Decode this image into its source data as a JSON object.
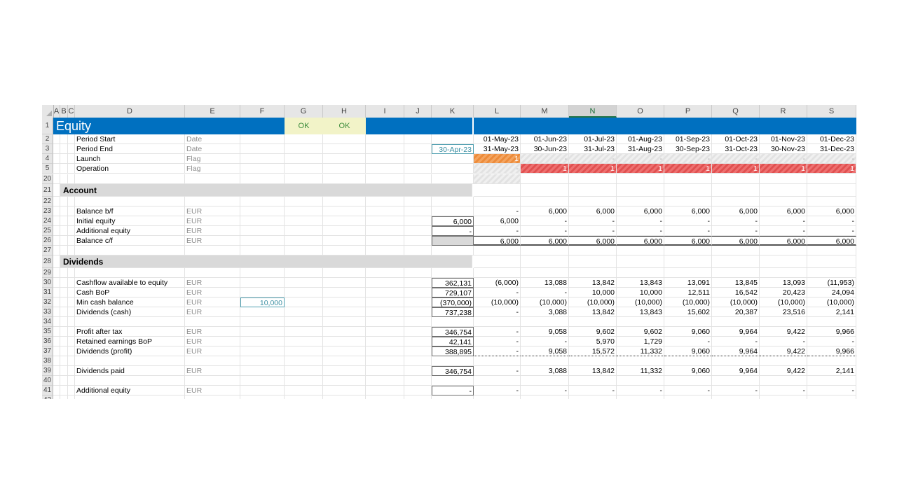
{
  "columns": [
    "A",
    "B",
    "C",
    "D",
    "E",
    "F",
    "G",
    "H",
    "I",
    "J",
    "K",
    "L",
    "M",
    "N",
    "O",
    "P",
    "Q",
    "R",
    "S"
  ],
  "selected_column": "N",
  "sheet_title": "Equity",
  "ok_flags": [
    "OK",
    "OK"
  ],
  "colors": {
    "title_bar": "#0070c0",
    "section": "#d9d9d9",
    "launch": "#f4a460",
    "operation": "#e86060",
    "ok_fill": "#f2f3c8"
  },
  "rows": [
    {
      "n": "2",
      "d": "Period Start",
      "e": "Date",
      "k": "",
      "ts": [
        "01-May-23",
        "01-Jun-23",
        "01-Jul-23",
        "01-Aug-23",
        "01-Sep-23",
        "01-Oct-23",
        "01-Nov-23",
        "01-Dec-23"
      ]
    },
    {
      "n": "3",
      "d": "Period End",
      "e": "Date",
      "k": "30-Apr-23",
      "ts": [
        "31-May-23",
        "30-Jun-23",
        "31-Jul-23",
        "31-Aug-23",
        "30-Sep-23",
        "31-Oct-23",
        "30-Nov-23",
        "31-Dec-23"
      ]
    },
    {
      "n": "4",
      "d": "Launch",
      "e": "Flag",
      "k": "",
      "ts": [
        "1",
        "-",
        "-",
        "-",
        "-",
        "-",
        "-",
        "-"
      ]
    },
    {
      "n": "5",
      "d": "Operation",
      "e": "Flag",
      "k": "",
      "ts": [
        "-",
        "1",
        "1",
        "1",
        "1",
        "1",
        "1",
        "1"
      ]
    },
    {
      "n": "20",
      "d": "",
      "e": "",
      "k": "",
      "ts": []
    },
    {
      "n": "21",
      "d": "Account",
      "e": "",
      "k": "",
      "ts": []
    },
    {
      "n": "22",
      "d": "",
      "e": "",
      "k": "",
      "ts": []
    },
    {
      "n": "23",
      "d": "Balance b/f",
      "e": "EUR",
      "k": "",
      "ts": [
        "-",
        "6,000",
        "6,000",
        "6,000",
        "6,000",
        "6,000",
        "6,000",
        "6,000"
      ]
    },
    {
      "n": "24",
      "d": "Initial equity",
      "e": "EUR",
      "k": "6,000",
      "ts": [
        "6,000",
        "-",
        "-",
        "-",
        "-",
        "-",
        "-",
        "-"
      ]
    },
    {
      "n": "25",
      "d": "Additional equity",
      "e": "EUR",
      "k": "-",
      "ts": [
        "-",
        "-",
        "-",
        "-",
        "-",
        "-",
        "-",
        "-"
      ]
    },
    {
      "n": "26",
      "d": "Balance c/f",
      "e": "EUR",
      "k": "",
      "ts": [
        "6,000",
        "6,000",
        "6,000",
        "6,000",
        "6,000",
        "6,000",
        "6,000",
        "6,000"
      ]
    },
    {
      "n": "27",
      "d": "",
      "e": "",
      "k": "",
      "ts": []
    },
    {
      "n": "28",
      "d": "Dividends",
      "e": "",
      "k": "",
      "ts": []
    },
    {
      "n": "29",
      "d": "",
      "e": "",
      "k": "",
      "ts": []
    },
    {
      "n": "30",
      "d": "Cashflow available to equity",
      "e": "EUR",
      "k": "362,131",
      "ts": [
        "(6,000)",
        "13,088",
        "13,842",
        "13,843",
        "13,091",
        "13,845",
        "13,093",
        "(11,953)"
      ]
    },
    {
      "n": "31",
      "d": "Cash BoP",
      "e": "EUR",
      "k": "729,107",
      "ts": [
        "-",
        "-",
        "10,000",
        "10,000",
        "12,511",
        "16,542",
        "20,423",
        "24,094"
      ]
    },
    {
      "n": "32",
      "d": "Min cash balance",
      "e": "EUR",
      "f": "10,000",
      "k": "(370,000)",
      "ts": [
        "(10,000)",
        "(10,000)",
        "(10,000)",
        "(10,000)",
        "(10,000)",
        "(10,000)",
        "(10,000)",
        "(10,000)"
      ]
    },
    {
      "n": "33",
      "d": "Dividends (cash)",
      "e": "EUR",
      "k": "737,238",
      "ts": [
        "-",
        "3,088",
        "13,842",
        "13,843",
        "15,602",
        "20,387",
        "23,516",
        "2,141"
      ]
    },
    {
      "n": "34",
      "d": "",
      "e": "",
      "k": "",
      "ts": []
    },
    {
      "n": "35",
      "d": "Profit after tax",
      "e": "EUR",
      "k": "346,754",
      "ts": [
        "-",
        "9,058",
        "9,602",
        "9,602",
        "9,060",
        "9,964",
        "9,422",
        "9,966"
      ]
    },
    {
      "n": "36",
      "d": "Retained earnings BoP",
      "e": "EUR",
      "k": "42,141",
      "ts": [
        "-",
        "-",
        "5,970",
        "1,729",
        "-",
        "-",
        "-",
        "-"
      ]
    },
    {
      "n": "37",
      "d": "Dividends (profit)",
      "e": "EUR",
      "k": "388,895",
      "ts": [
        "-",
        "9,058",
        "15,572",
        "11,332",
        "9,060",
        "9,964",
        "9,422",
        "9,966"
      ]
    },
    {
      "n": "38",
      "d": "",
      "e": "",
      "k": "",
      "ts": []
    },
    {
      "n": "39",
      "d": "Dividends paid",
      "e": "EUR",
      "k": "346,754",
      "ts": [
        "-",
        "3,088",
        "13,842",
        "11,332",
        "9,060",
        "9,964",
        "9,422",
        "2,141"
      ]
    },
    {
      "n": "40",
      "d": "",
      "e": "",
      "k": "",
      "ts": []
    },
    {
      "n": "41",
      "d": "Additional equity",
      "e": "EUR",
      "k": "-",
      "ts": [
        "-",
        "-",
        "-",
        "-",
        "-",
        "-",
        "-",
        "-"
      ]
    },
    {
      "n": "42",
      "d": "",
      "e": "",
      "k": "",
      "ts": []
    }
  ]
}
